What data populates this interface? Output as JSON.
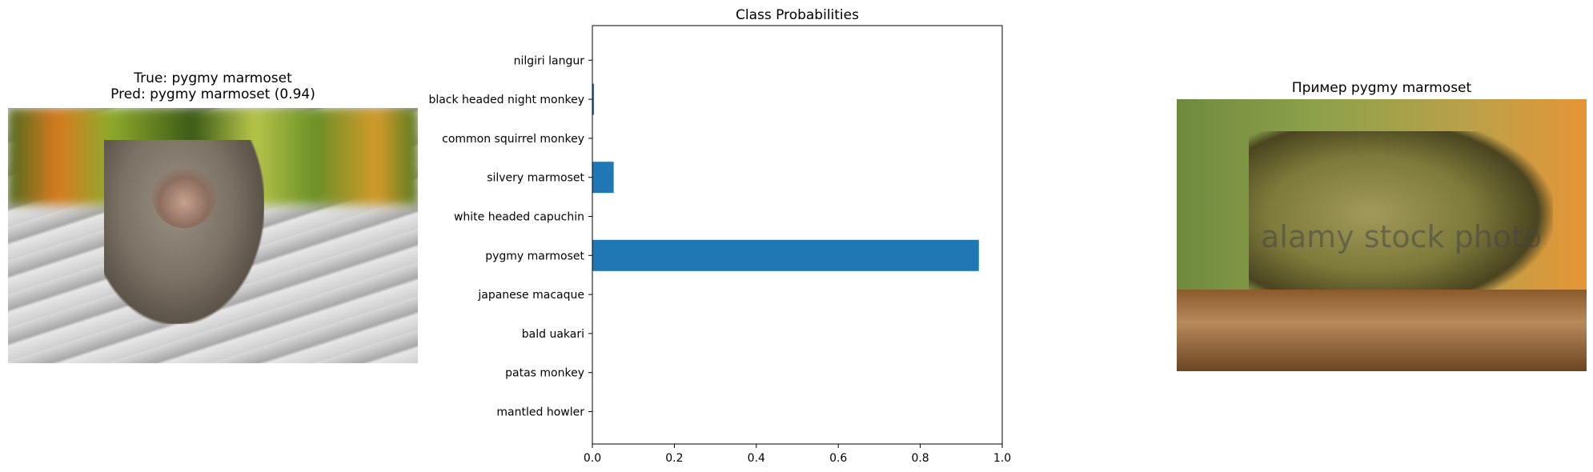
{
  "left_panel": {
    "title_line1": "True: pygmy marmoset",
    "title_line2": "Pred: pygmy marmoset (0.94)"
  },
  "right_panel": {
    "title": "Пример pygmy marmoset",
    "watermark": "alamy stock photo"
  },
  "chart_data": {
    "type": "bar",
    "orientation": "horizontal",
    "title": "Class Probabilities",
    "xlabel": "",
    "ylabel": "",
    "categories": [
      "mantled howler",
      "patas monkey",
      "bald uakari",
      "japanese macaque",
      "pygmy marmoset",
      "white headed capuchin",
      "silvery marmoset",
      "common squirrel monkey",
      "black headed night monkey",
      "nilgiri langur"
    ],
    "values": [
      0.0,
      0.0,
      0.0,
      0.0,
      0.943,
      0.0,
      0.052,
      0.0,
      0.004,
      0.0
    ],
    "xlim": [
      0,
      1
    ],
    "xticks": [
      "0.0",
      "0.2",
      "0.4",
      "0.6",
      "0.8",
      "1.0"
    ],
    "grid": false,
    "bar_color": "#1f77b4"
  }
}
